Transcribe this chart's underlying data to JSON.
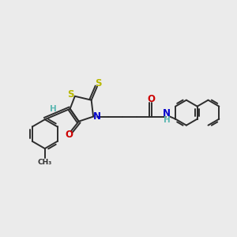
{
  "bg_color": "#ebebeb",
  "bond_color": "#2d2d2d",
  "S_color": "#b8b800",
  "N_color": "#0000cc",
  "O_color": "#cc0000",
  "H_color": "#5cb8b2",
  "font_size": 7.5,
  "line_width": 1.4,
  "fig_w": 3.0,
  "fig_h": 3.0,
  "dpi": 100,
  "xlim": [
    0,
    12
  ],
  "ylim": [
    0,
    10
  ]
}
